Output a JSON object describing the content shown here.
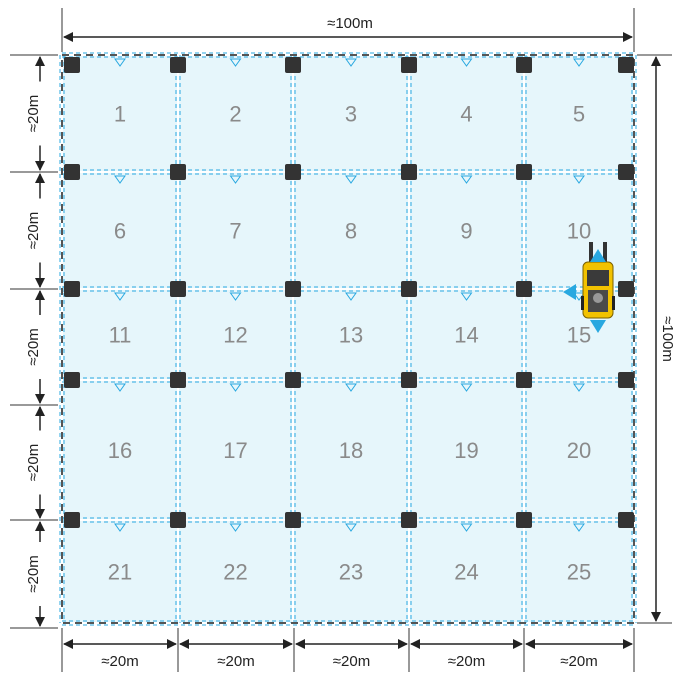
{
  "grid": {
    "rows": 5,
    "cols": 5,
    "cells": [
      "1",
      "2",
      "3",
      "4",
      "5",
      "6",
      "7",
      "8",
      "9",
      "10",
      "11",
      "12",
      "13",
      "14",
      "15",
      "16",
      "17",
      "18",
      "19",
      "20",
      "21",
      "22",
      "23",
      "24",
      "25"
    ]
  },
  "dimensions": {
    "top_total": "≈100m",
    "right_total": "≈100m",
    "left_segments": [
      "≈20m",
      "≈20m",
      "≈20m",
      "≈20m",
      "≈20m"
    ],
    "bottom_segments": [
      "≈20m",
      "≈20m",
      "≈20m",
      "≈20m",
      "≈20m"
    ]
  },
  "vehicle": {
    "type": "forklift",
    "cell": "15",
    "color": "#f2c200"
  },
  "colors": {
    "cell_fill": "#e6f6fb",
    "grid_line": "#29a8e0",
    "pillar": "#333333",
    "boundary": "#555555",
    "arrow": "#29a8e0",
    "label": "#8a8a8a"
  },
  "icons": {
    "pillar": "pillar-marker-icon",
    "sensor": "triangle-sensor-icon",
    "vehicle": "forklift-icon",
    "move_arrows": "direction-arrow-icon"
  }
}
